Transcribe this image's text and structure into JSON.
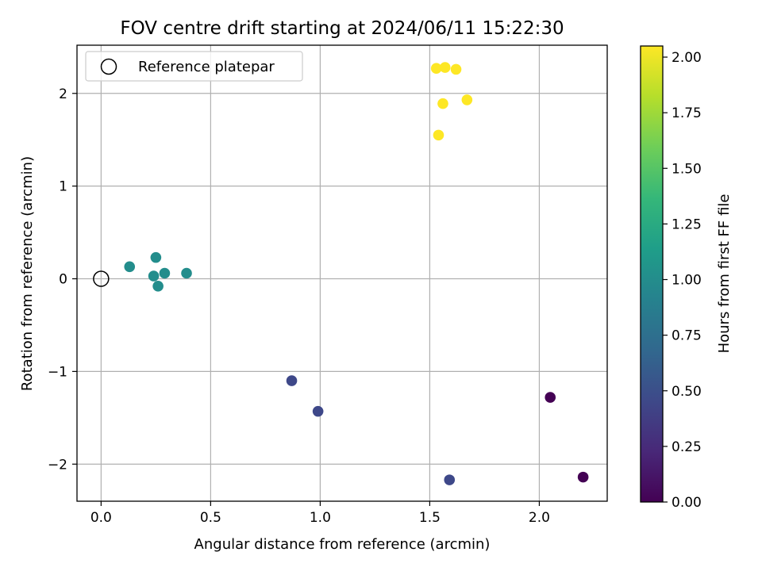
{
  "chart_data": {
    "type": "scatter",
    "title": "FOV centre drift starting at 2024/06/11 15:22:30",
    "xlabel": "Angular distance from reference (arcmin)",
    "ylabel": "Rotation from reference (arcmin)",
    "xlim": [
      -0.11,
      2.31
    ],
    "ylim": [
      -2.4,
      2.52
    ],
    "xticks": [
      0.0,
      0.5,
      1.0,
      1.5,
      2.0
    ],
    "xtick_labels": [
      "0.0",
      "0.5",
      "1.0",
      "1.5",
      "2.0"
    ],
    "yticks": [
      -2,
      -1,
      0,
      1,
      2
    ],
    "ytick_labels": [
      "−2",
      "−1",
      "0",
      "1",
      "2"
    ],
    "grid": true,
    "legend": {
      "location": "top-left",
      "entries": [
        {
          "label": "Reference platepar",
          "marker": "open-circle"
        }
      ]
    },
    "reference_point": {
      "x": 0.0,
      "y": 0.0
    },
    "colorbar": {
      "label": "Hours from first FF file",
      "colormap": "viridis",
      "range": [
        0.0,
        2.05
      ],
      "ticks": [
        0.0,
        0.25,
        0.5,
        0.75,
        1.0,
        1.25,
        1.5,
        1.75,
        2.0
      ],
      "tick_labels": [
        "0.00",
        "0.25",
        "0.50",
        "0.75",
        "1.00",
        "1.25",
        "1.50",
        "1.75",
        "2.00"
      ]
    },
    "points": [
      {
        "x": 2.05,
        "y": -1.28,
        "c": 0.0
      },
      {
        "x": 2.2,
        "y": -2.14,
        "c": 0.0
      },
      {
        "x": 0.87,
        "y": -1.1,
        "c": 0.45
      },
      {
        "x": 0.99,
        "y": -1.43,
        "c": 0.45
      },
      {
        "x": 1.59,
        "y": -2.17,
        "c": 0.45
      },
      {
        "x": 0.13,
        "y": 0.13,
        "c": 1.0
      },
      {
        "x": 0.25,
        "y": 0.23,
        "c": 1.0
      },
      {
        "x": 0.24,
        "y": 0.03,
        "c": 1.0
      },
      {
        "x": 0.29,
        "y": 0.06,
        "c": 1.0
      },
      {
        "x": 0.39,
        "y": 0.06,
        "c": 1.0
      },
      {
        "x": 0.26,
        "y": -0.08,
        "c": 1.0
      },
      {
        "x": 1.53,
        "y": 2.27,
        "c": 2.05
      },
      {
        "x": 1.57,
        "y": 2.28,
        "c": 2.05
      },
      {
        "x": 1.62,
        "y": 2.26,
        "c": 2.05
      },
      {
        "x": 1.56,
        "y": 1.89,
        "c": 2.05
      },
      {
        "x": 1.67,
        "y": 1.93,
        "c": 2.05
      },
      {
        "x": 1.54,
        "y": 1.55,
        "c": 2.05
      }
    ]
  }
}
